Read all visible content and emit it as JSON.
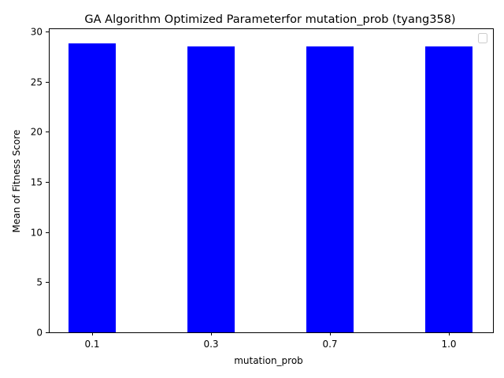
{
  "chart_data": {
    "type": "bar",
    "title": "GA Algorithm Optimized Parameterfor mutation_prob (tyang358)",
    "xlabel": "mutation_prob",
    "ylabel": "Mean of Fitness Score",
    "categories": [
      "0.1",
      "0.3",
      "0.7",
      "1.0"
    ],
    "values": [
      28.8,
      28.5,
      28.5,
      28.5
    ],
    "ylim": [
      0,
      30.3
    ],
    "yticks": [
      0,
      5,
      10,
      15,
      20,
      25,
      30
    ],
    "bar_color": "#0000ff",
    "grid": false,
    "legend": {
      "placement": "top-right",
      "entries": []
    }
  }
}
